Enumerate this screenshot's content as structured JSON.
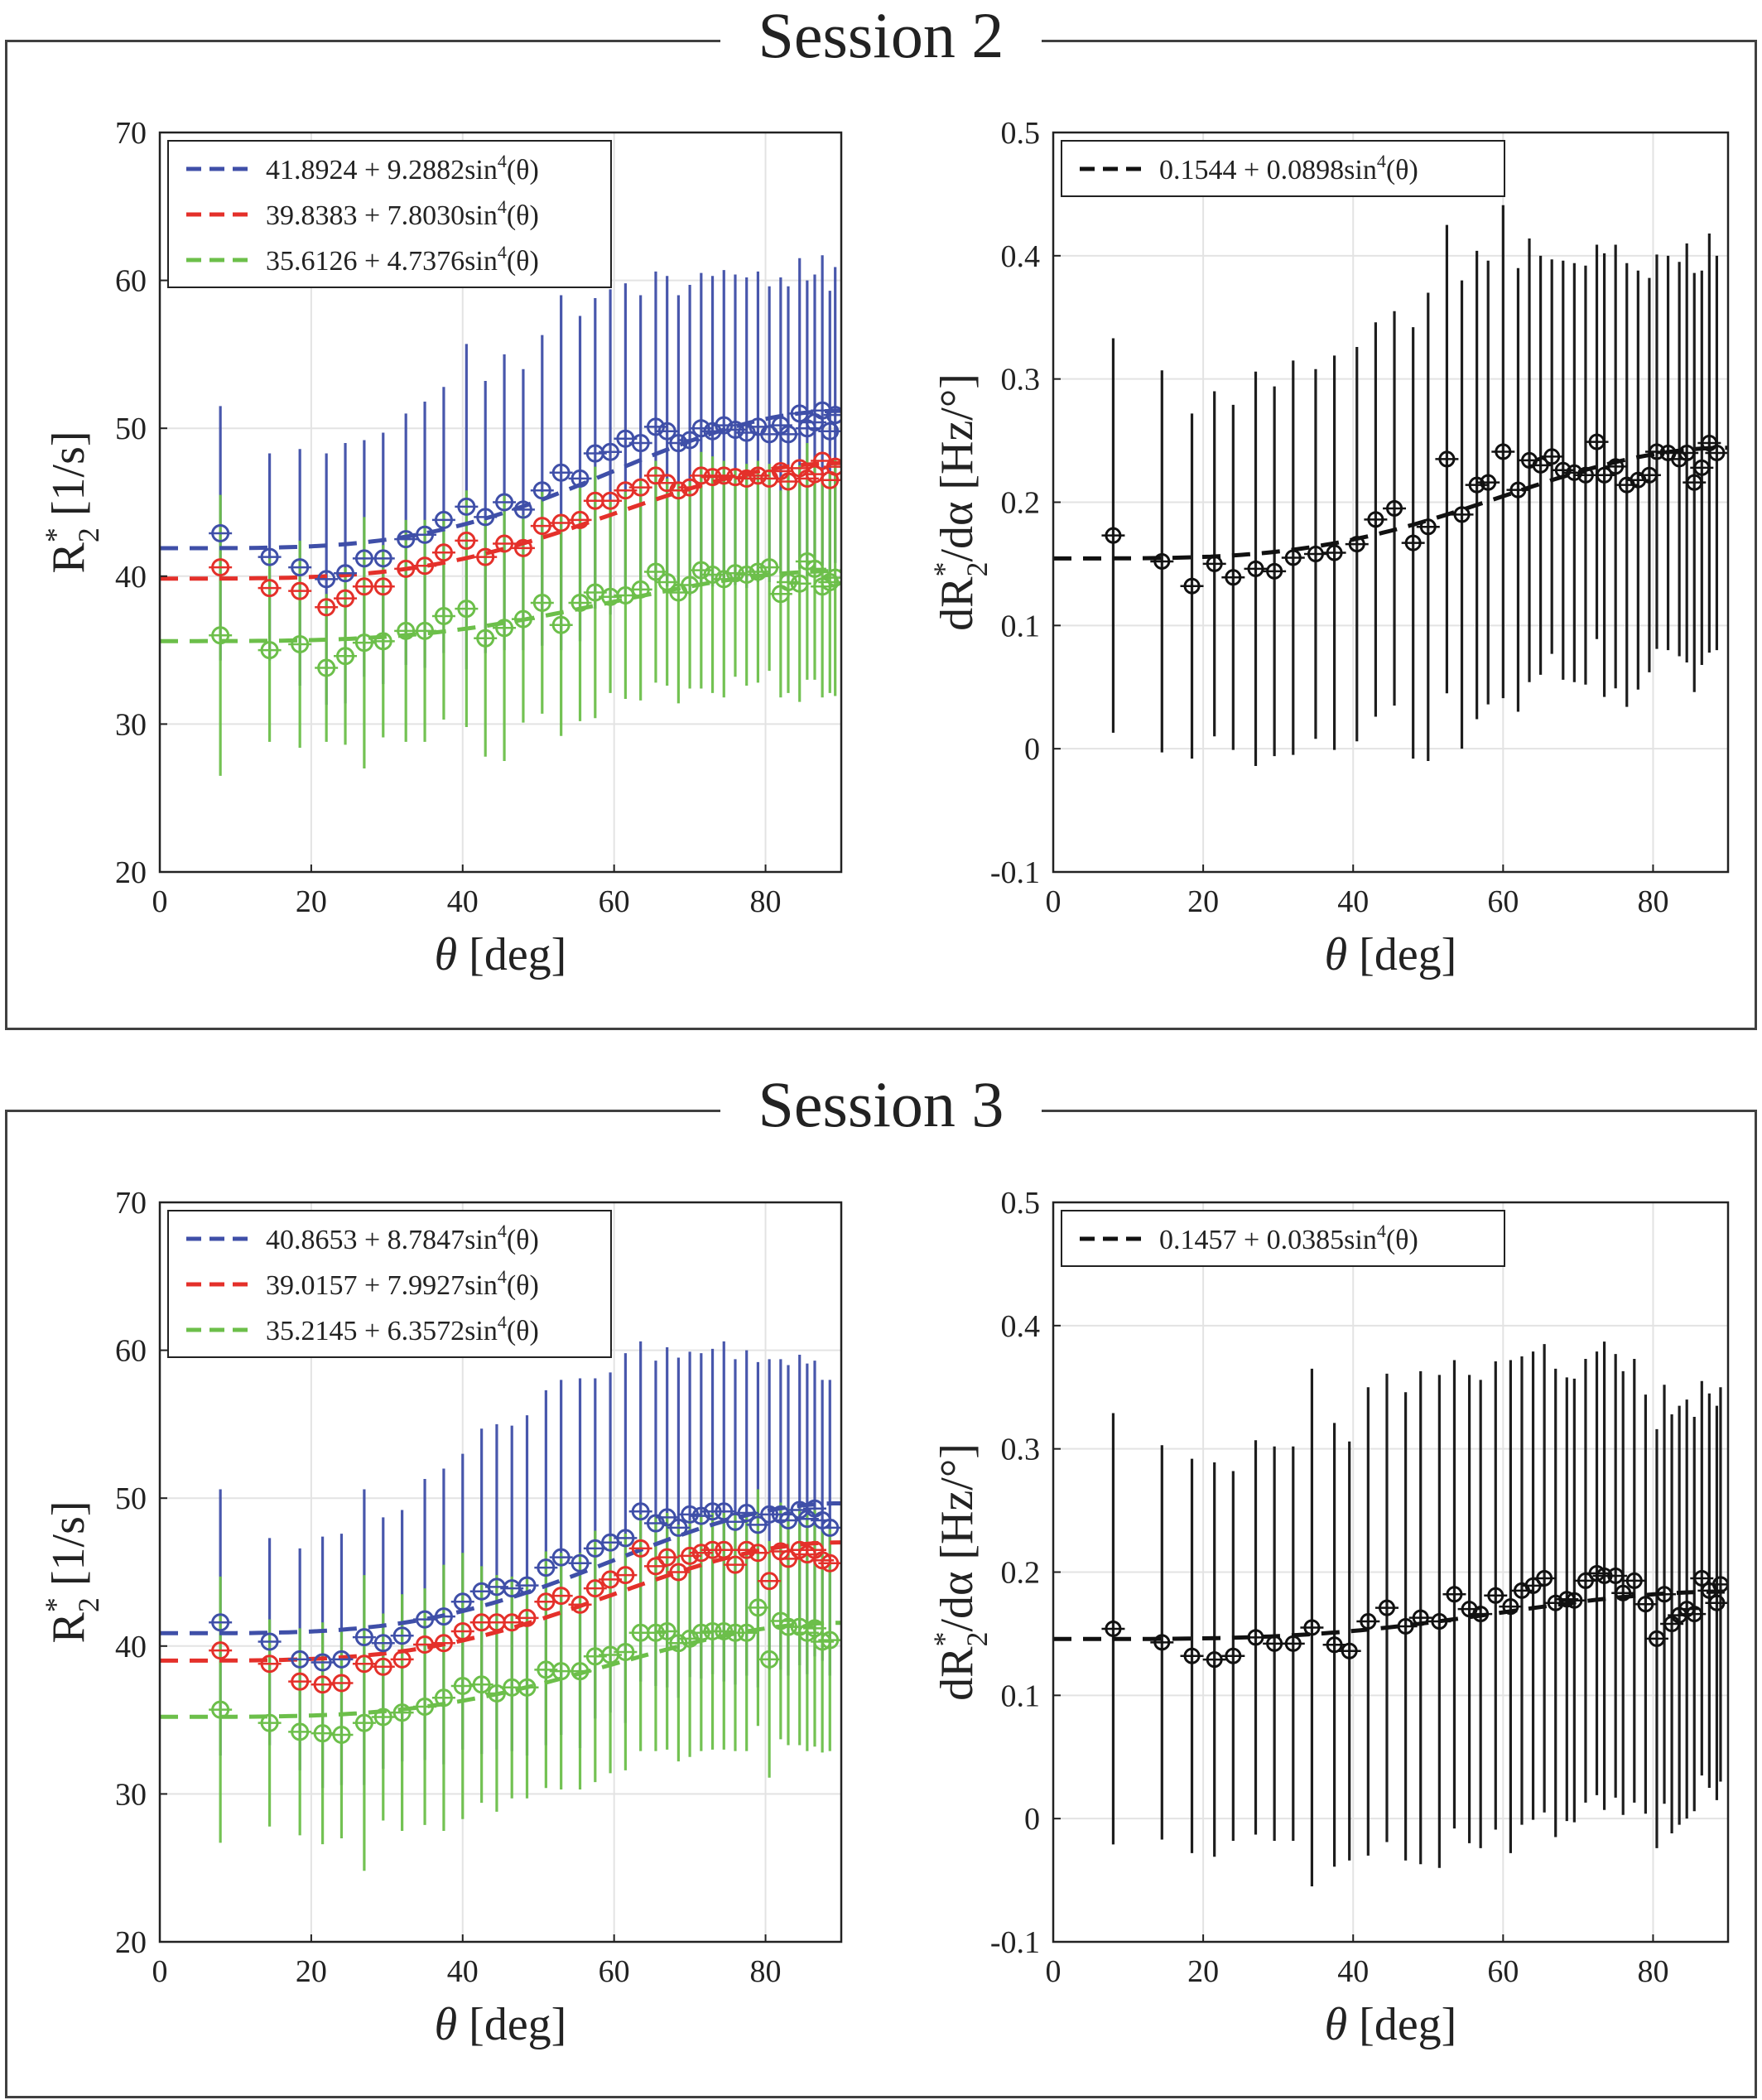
{
  "sessions": [
    {
      "title": "Session 2",
      "left": {
        "ylabel_main": "R",
        "ylabel_sup": "*",
        "ylabel_sub": "2",
        "ylabel_rest": " [1/s]",
        "xlabel_sym": "θ",
        "xlabel_rest": " [deg]",
        "xlim": [
          0,
          90
        ],
        "ylim": [
          20,
          70
        ],
        "xticks": [
          0,
          20,
          40,
          60,
          80
        ],
        "yticks": [
          20,
          30,
          40,
          50,
          60,
          70
        ],
        "legend": [
          {
            "text": "41.8924 + 9.2882sin",
            "sup": "4",
            "tail": "(θ)",
            "color": "#3f4fa8"
          },
          {
            "text": "39.8383 + 7.8030sin",
            "sup": "4",
            "tail": "(θ)",
            "color": "#e4302a"
          },
          {
            "text": "35.6126 + 4.7376sin",
            "sup": "4",
            "tail": "(θ)",
            "color": "#6cbf4a"
          }
        ]
      },
      "right": {
        "ylabel_main": "dR",
        "ylabel_sup": "*",
        "ylabel_sub": "2",
        "ylabel_rest": "/dα [Hz/°]",
        "xlabel_sym": "θ",
        "xlabel_rest": " [deg]",
        "xlim": [
          0,
          90
        ],
        "ylim": [
          -0.1,
          0.5
        ],
        "xticks": [
          0,
          20,
          40,
          60,
          80
        ],
        "yticks": [
          -0.1,
          0,
          0.1,
          0.2,
          0.3,
          0.4,
          0.5
        ],
        "legend": [
          {
            "text": "0.1544 + 0.0898sin",
            "sup": "4",
            "tail": "(θ)",
            "color": "#111111"
          }
        ]
      }
    },
    {
      "title": "Session 3",
      "left": {
        "ylabel_main": "R",
        "ylabel_sup": "*",
        "ylabel_sub": "2",
        "ylabel_rest": " [1/s]",
        "xlabel_sym": "θ",
        "xlabel_rest": " [deg]",
        "xlim": [
          0,
          90
        ],
        "ylim": [
          20,
          70
        ],
        "xticks": [
          0,
          20,
          40,
          60,
          80
        ],
        "yticks": [
          20,
          30,
          40,
          50,
          60,
          70
        ],
        "legend": [
          {
            "text": "40.8653 + 8.7847sin",
            "sup": "4",
            "tail": "(θ)",
            "color": "#3f4fa8"
          },
          {
            "text": "39.0157 + 7.9927sin",
            "sup": "4",
            "tail": "(θ)",
            "color": "#e4302a"
          },
          {
            "text": "35.2145 + 6.3572sin",
            "sup": "4",
            "tail": "(θ)",
            "color": "#6cbf4a"
          }
        ]
      },
      "right": {
        "ylabel_main": "dR",
        "ylabel_sup": "*",
        "ylabel_sub": "2",
        "ylabel_rest": "/dα [Hz/°]",
        "xlabel_sym": "θ",
        "xlabel_rest": " [deg]",
        "xlim": [
          0,
          90
        ],
        "ylim": [
          -0.1,
          0.5
        ],
        "xticks": [
          0,
          20,
          40,
          60,
          80
        ],
        "yticks": [
          -0.1,
          0,
          0.1,
          0.2,
          0.3,
          0.4,
          0.5
        ],
        "legend": [
          {
            "text": "0.1457 + 0.0385sin",
            "sup": "4",
            "tail": "(θ)",
            "color": "#111111"
          }
        ]
      }
    }
  ],
  "chart_data": [
    {
      "type": "scatter",
      "title": "Session 2",
      "xlabel": "θ [deg]",
      "ylabel": "R*2 [1/s]",
      "xlim": [
        0,
        90
      ],
      "ylim": [
        20,
        70
      ],
      "grid": true,
      "legend_position": "top-left",
      "x": [
        8,
        14.5,
        18.5,
        22,
        24.5,
        27,
        29.5,
        32.5,
        35,
        37.5,
        40.5,
        43,
        45.5,
        48,
        50.5,
        53,
        55.5,
        57.5,
        59.5,
        61.5,
        63.5,
        65.5,
        67,
        68.5,
        70,
        71.5,
        73,
        74.5,
        76,
        77.5,
        79,
        80.5,
        82,
        83,
        84.5,
        85.5,
        86.5,
        87.5,
        88.5,
        89.2
      ],
      "series": [
        {
          "name": "41.8924 + 9.2882sin4(θ)",
          "color": "#3f4fa8",
          "fit": [
            41.8924,
            9.2882
          ],
          "y": [
            42.9,
            41.3,
            40.6,
            39.8,
            40.2,
            41.2,
            41.2,
            42.5,
            42.8,
            43.8,
            44.7,
            44.0,
            45.0,
            44.5,
            45.8,
            47.0,
            46.6,
            48.3,
            48.4,
            49.3,
            49.0,
            50.1,
            49.8,
            49.0,
            49.2,
            50.0,
            49.8,
            50.2,
            49.9,
            49.7,
            50.1,
            49.6,
            50.2,
            49.6,
            51.0,
            50.0,
            50.4,
            51.2,
            49.8,
            50.9
          ],
          "err": [
            8.6,
            7.0,
            8.0,
            8.5,
            8.8,
            8.0,
            8.5,
            8.5,
            9.0,
            9.0,
            11.0,
            9.2,
            10.0,
            9.5,
            10.5,
            12.0,
            11.0,
            10.5,
            11.0,
            10.5,
            10.0,
            10.5,
            10.5,
            10.0,
            10.5,
            10.5,
            10.5,
            10.5,
            10.5,
            10.5,
            10.5,
            10.0,
            10.0,
            10.0,
            10.5,
            10.0,
            10.0,
            10.5,
            9.5,
            10.0
          ]
        },
        {
          "name": "39.8383 + 7.8030sin4(θ)",
          "color": "#e4302a",
          "fit": [
            39.8383,
            7.803
          ],
          "y": [
            40.6,
            39.2,
            39.0,
            37.9,
            38.5,
            39.3,
            39.3,
            40.5,
            40.7,
            41.6,
            42.4,
            41.3,
            42.2,
            41.9,
            43.4,
            43.6,
            43.8,
            45.1,
            45.1,
            45.8,
            46.0,
            46.8,
            46.3,
            45.8,
            46.0,
            46.8,
            46.7,
            46.8,
            46.7,
            46.6,
            46.8,
            46.6,
            47.1,
            46.4,
            47.3,
            46.6,
            46.9,
            47.8,
            46.5,
            47.4
          ],
          "err": []
        },
        {
          "name": "35.6126 + 4.7376sin4(θ)",
          "color": "#6cbf4a",
          "fit": [
            35.6126,
            4.7376
          ],
          "y": [
            36.0,
            35.0,
            35.4,
            33.8,
            34.6,
            35.5,
            35.6,
            36.3,
            36.3,
            37.3,
            37.8,
            35.8,
            36.5,
            37.1,
            38.2,
            36.7,
            38.2,
            38.9,
            38.6,
            38.7,
            39.1,
            40.3,
            39.6,
            38.9,
            39.4,
            40.4,
            40.1,
            39.8,
            40.2,
            40.1,
            40.3,
            40.6,
            38.8,
            39.6,
            39.5,
            41.0,
            40.5,
            39.3,
            39.6,
            39.9
          ],
          "err": [
            9.5,
            6.2,
            7.0,
            5.0,
            6.0,
            8.5,
            6.5,
            7.5,
            7.5,
            7.0,
            8.0,
            8.0,
            9.0,
            7.0,
            7.5,
            7.5,
            8.0,
            8.5,
            6.5,
            7.0,
            7.5,
            7.5,
            7.0,
            7.5,
            7.0,
            8.0,
            8.0,
            8.0,
            7.0,
            7.5,
            7.5,
            7.0,
            7.0,
            7.5,
            8.0,
            8.0,
            7.5,
            7.5,
            7.5,
            8.0
          ]
        }
      ]
    },
    {
      "type": "scatter",
      "title": "Session 2",
      "xlabel": "θ [deg]",
      "ylabel": "dR*2/dα [Hz/°]",
      "xlim": [
        0,
        90
      ],
      "ylim": [
        -0.1,
        0.5
      ],
      "grid": true,
      "legend_position": "top-left",
      "x": [
        8,
        14.5,
        18.5,
        21.5,
        24,
        27,
        29.5,
        32,
        35,
        37.5,
        40.5,
        43,
        45.5,
        48,
        50,
        52.5,
        54.5,
        56.5,
        58,
        60,
        62,
        63.5,
        65,
        66.5,
        68,
        69.5,
        71,
        72.5,
        73.5,
        75,
        76.5,
        78,
        79.5,
        80.5,
        82,
        83.5,
        84.5,
        85.5,
        86.5,
        87.5,
        88.5
      ],
      "series": [
        {
          "name": "0.1544 + 0.0898sin4(θ)",
          "color": "#111111",
          "fit": [
            0.1544,
            0.0898
          ],
          "y": [
            0.173,
            0.152,
            0.132,
            0.15,
            0.139,
            0.146,
            0.144,
            0.155,
            0.158,
            0.159,
            0.166,
            0.186,
            0.195,
            0.167,
            0.18,
            0.235,
            0.19,
            0.214,
            0.216,
            0.241,
            0.21,
            0.234,
            0.23,
            0.237,
            0.226,
            0.224,
            0.222,
            0.249,
            0.222,
            0.229,
            0.214,
            0.218,
            0.222,
            0.241,
            0.24,
            0.235,
            0.24,
            0.216,
            0.228,
            0.248,
            0.24
          ],
          "err": [
            0.16,
            0.155,
            0.14,
            0.14,
            0.14,
            0.16,
            0.15,
            0.16,
            0.15,
            0.16,
            0.16,
            0.16,
            0.16,
            0.175,
            0.19,
            0.19,
            0.19,
            0.19,
            0.18,
            0.2,
            0.18,
            0.18,
            0.17,
            0.16,
            0.17,
            0.17,
            0.17,
            0.16,
            0.18,
            0.18,
            0.18,
            0.17,
            0.16,
            0.16,
            0.16,
            0.16,
            0.17,
            0.17,
            0.16,
            0.17,
            0.16
          ]
        }
      ]
    },
    {
      "type": "scatter",
      "title": "Session 3",
      "xlabel": "θ [deg]",
      "ylabel": "R*2 [1/s]",
      "xlim": [
        0,
        90
      ],
      "ylim": [
        20,
        70
      ],
      "grid": true,
      "legend_position": "top-left",
      "x": [
        8,
        14.5,
        18.5,
        21.5,
        24,
        27,
        29.5,
        32,
        35,
        37.5,
        40,
        42.5,
        44.5,
        46.5,
        48.5,
        51,
        53,
        55.5,
        57.5,
        59.5,
        61.5,
        63.5,
        65.5,
        67,
        68.5,
        70,
        71.5,
        73,
        74.5,
        76,
        77.5,
        79,
        80.5,
        82,
        83,
        84.5,
        85.5,
        86.5,
        87.5,
        88.5
      ],
      "series": [
        {
          "name": "40.8653 + 8.7847sin4(θ)",
          "color": "#3f4fa8",
          "fit": [
            40.8653,
            8.7847
          ],
          "y": [
            41.6,
            40.3,
            39.1,
            38.9,
            39.1,
            40.6,
            40.2,
            40.7,
            41.8,
            42.0,
            43.0,
            43.7,
            44.0,
            43.9,
            44.1,
            45.3,
            46.0,
            45.6,
            46.6,
            47.0,
            47.3,
            49.1,
            48.3,
            48.7,
            48.0,
            48.9,
            48.8,
            49.1,
            49.1,
            48.4,
            49.0,
            48.2,
            48.9,
            48.9,
            48.5,
            49.2,
            48.6,
            49.3,
            48.5,
            48.0
          ],
          "err": [
            9.0,
            7.0,
            7.5,
            8.5,
            8.5,
            10.0,
            8.5,
            8.5,
            9.5,
            10.0,
            10.0,
            11.0,
            11.0,
            11.0,
            11.5,
            12.0,
            12.0,
            12.5,
            11.5,
            11.5,
            12.5,
            11.5,
            11.0,
            11.5,
            11.5,
            11.0,
            11.0,
            11.0,
            11.5,
            11.0,
            11.0,
            11.0,
            10.5,
            10.5,
            10.5,
            10.5,
            10.5,
            10.0,
            9.5,
            10.0
          ]
        },
        {
          "name": "39.0157 + 7.9927sin4(θ)",
          "color": "#e4302a",
          "fit": [
            39.0157,
            7.9927
          ],
          "y": [
            39.7,
            38.8,
            37.6,
            37.4,
            37.5,
            38.8,
            38.6,
            39.1,
            40.1,
            40.2,
            41.0,
            41.6,
            41.6,
            41.6,
            41.9,
            43.0,
            43.4,
            42.8,
            43.9,
            44.5,
            44.8,
            46.6,
            45.4,
            46.0,
            45.0,
            46.1,
            46.3,
            46.5,
            46.5,
            45.5,
            46.5,
            46.3,
            44.4,
            46.4,
            45.9,
            46.5,
            46.2,
            46.5,
            45.8,
            45.6
          ],
          "err": []
        },
        {
          "name": "35.2145 + 6.3572sin4(θ)",
          "color": "#6cbf4a",
          "fit": [
            35.2145,
            6.3572
          ],
          "y": [
            35.7,
            34.8,
            34.2,
            34.1,
            34.0,
            34.8,
            35.2,
            35.5,
            35.9,
            36.5,
            37.3,
            37.4,
            36.8,
            37.2,
            37.2,
            38.4,
            38.3,
            38.3,
            39.3,
            39.4,
            39.6,
            40.9,
            40.9,
            41.0,
            40.2,
            40.5,
            40.9,
            41.0,
            41.0,
            40.9,
            40.9,
            42.6,
            39.1,
            41.7,
            41.3,
            41.3,
            40.9,
            41.2,
            40.3,
            40.4
          ],
          "err": [
            9.0,
            7.0,
            7.0,
            7.5,
            7.0,
            10.0,
            7.0,
            8.0,
            8.0,
            9.0,
            9.0,
            8.0,
            8.0,
            7.5,
            7.5,
            8.0,
            8.0,
            8.0,
            8.5,
            8.0,
            8.0,
            8.0,
            8.0,
            8.0,
            8.0,
            8.0,
            8.0,
            8.0,
            8.0,
            8.0,
            8.0,
            8.0,
            8.0,
            8.0,
            8.0,
            8.0,
            8.0,
            8.0,
            7.5,
            7.5
          ]
        }
      ]
    },
    {
      "type": "scatter",
      "title": "Session 3",
      "xlabel": "θ [deg]",
      "ylabel": "dR*2/dα [Hz/°]",
      "xlim": [
        0,
        90
      ],
      "ylim": [
        -0.1,
        0.5
      ],
      "grid": true,
      "legend_position": "top-left",
      "x": [
        8,
        14.5,
        18.5,
        21.5,
        24,
        27,
        29.5,
        32,
        34.5,
        37.5,
        39.5,
        42,
        44.5,
        47,
        49,
        51.5,
        53.5,
        55.5,
        57,
        59,
        61,
        62.5,
        64,
        65.5,
        67,
        68.5,
        69.5,
        71,
        72.5,
        73.5,
        75,
        76,
        77.5,
        79,
        80.5,
        81.5,
        82.5,
        83.5,
        84.5,
        85.5,
        86.5,
        87.5,
        88.5,
        89
      ],
      "series": [
        {
          "name": "0.1457 + 0.0385sin4(θ)",
          "color": "#111111",
          "fit": [
            0.1457,
            0.0385
          ],
          "y": [
            0.154,
            0.143,
            0.132,
            0.129,
            0.132,
            0.147,
            0.142,
            0.142,
            0.155,
            0.141,
            0.136,
            0.16,
            0.171,
            0.156,
            0.163,
            0.16,
            0.182,
            0.17,
            0.166,
            0.181,
            0.172,
            0.185,
            0.189,
            0.195,
            0.175,
            0.178,
            0.177,
            0.193,
            0.199,
            0.197,
            0.197,
            0.183,
            0.193,
            0.174,
            0.146,
            0.182,
            0.158,
            0.165,
            0.17,
            0.166,
            0.195,
            0.185,
            0.175,
            0.19
          ],
          "err": [
            0.175,
            0.16,
            0.16,
            0.16,
            0.15,
            0.16,
            0.16,
            0.16,
            0.21,
            0.18,
            0.17,
            0.19,
            0.19,
            0.19,
            0.2,
            0.2,
            0.19,
            0.19,
            0.19,
            0.19,
            0.2,
            0.19,
            0.19,
            0.19,
            0.19,
            0.18,
            0.18,
            0.18,
            0.18,
            0.19,
            0.18,
            0.18,
            0.18,
            0.17,
            0.17,
            0.17,
            0.17,
            0.17,
            0.17,
            0.16,
            0.16,
            0.16,
            0.16,
            0.16
          ]
        }
      ]
    }
  ]
}
